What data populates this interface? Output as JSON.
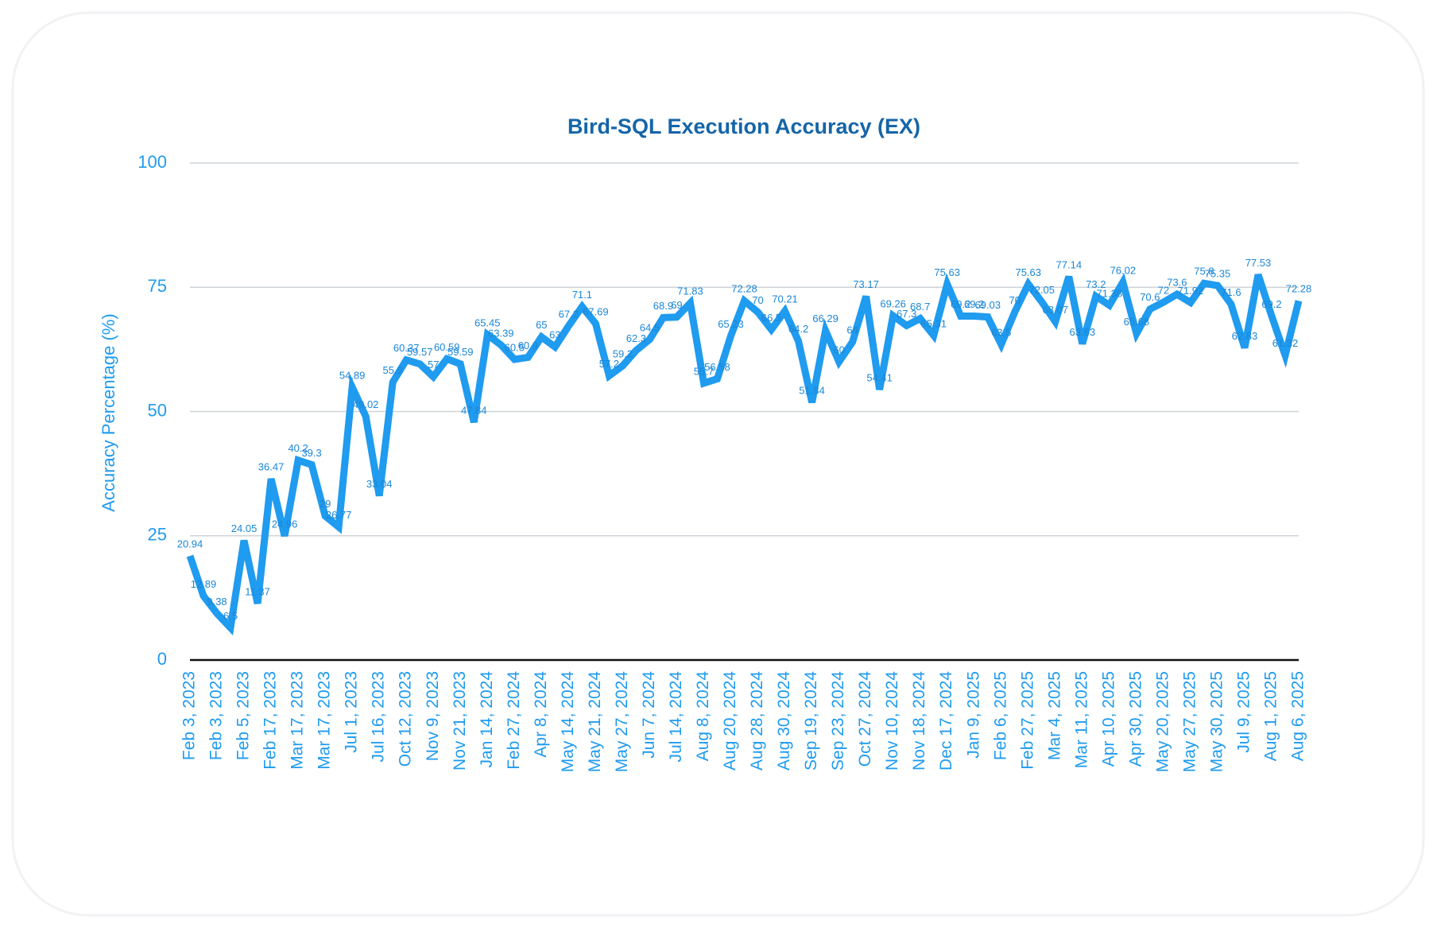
{
  "chart_data": {
    "type": "line",
    "title": "Bird-SQL Execution Accuracy (EX)",
    "y_label": "Accuracy Percentage (%)",
    "color": "#1f9bef",
    "categories": [
      "Feb 3, 2023",
      null,
      "Feb 3, 2023",
      null,
      "Feb 5, 2023",
      null,
      "Feb 17, 2023",
      null,
      "Mar 17, 2023",
      null,
      "Mar 17, 2023",
      null,
      "Jul 1, 2023",
      null,
      "Jul 16, 2023",
      null,
      "Oct 12, 2023",
      null,
      "Nov 9, 2023",
      null,
      "Nov 21, 2023",
      null,
      "Jan 14, 2024",
      null,
      "Feb 27, 2024",
      null,
      "Apr 8, 2024",
      null,
      "May 14, 2024",
      null,
      "May 21, 2024",
      null,
      "May 27, 2024",
      null,
      "Jun 7, 2024",
      null,
      "Jul 14, 2024",
      null,
      "Aug 8, 2024",
      null,
      "Aug 20, 2024",
      null,
      "Aug 28, 2024",
      null,
      "Aug 30, 2024",
      null,
      "Sep 19, 2024",
      null,
      "Sep 23, 2024",
      null,
      "Oct 27, 2024",
      null,
      "Nov 10, 2024",
      null,
      "Nov 18, 2024",
      null,
      "Dec 17, 2024",
      null,
      "Jan 9, 2025",
      null,
      "Feb 6, 2025",
      null,
      "Feb 27, 2025",
      null,
      "Mar 4, 2025",
      null,
      "Mar 11, 2025",
      null,
      "Apr 10, 2025",
      null,
      "Apr 30, 2025",
      null,
      "May 20, 2025",
      null,
      "May 27, 2025",
      null,
      "May 30, 2025",
      null,
      "Jul 9, 2025",
      null,
      "Aug 1, 2025",
      null,
      "Aug 6, 2025"
    ],
    "values": [
      20.94,
      12.89,
      9.38,
      6.5,
      24.05,
      11.37,
      36.47,
      24.96,
      40.2,
      39.3,
      29,
      26.77,
      54.89,
      49.02,
      33.04,
      55.9,
      60.37,
      59.57,
      57,
      60.59,
      59.59,
      47.84,
      65.45,
      63.39,
      60.5,
      60.9,
      65,
      63,
      67.2,
      71.1,
      67.69,
      57.2,
      59.2,
      62.3,
      64.5,
      68.9,
      69,
      71.83,
      55.7,
      56.58,
      65.23,
      72.28,
      70,
      66.5,
      70.21,
      64.2,
      51.84,
      66.29,
      60,
      64,
      73.17,
      54.41,
      69.26,
      67.3,
      68.7,
      65.31,
      75.63,
      69.2,
      69.2,
      69.03,
      63.5,
      70,
      75.63,
      72.05,
      68.07,
      77.14,
      63.63,
      73.2,
      71.38,
      76.02,
      65.68,
      70.6,
      72,
      73.6,
      71.92,
      75.8,
      75.35,
      71.6,
      62.83,
      77.53,
      69.2,
      61.32,
      72.28
    ],
    "ylim": [
      0,
      100
    ],
    "yticks": [
      0,
      25,
      50,
      75,
      100
    ],
    "grid": true
  }
}
